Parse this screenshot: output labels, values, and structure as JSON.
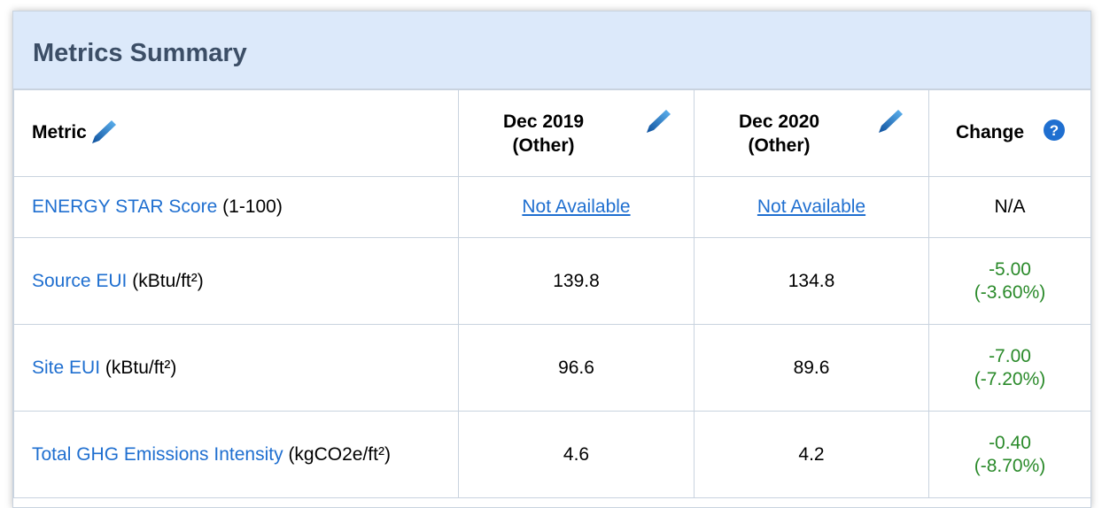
{
  "header": {
    "title": "Metrics Summary"
  },
  "table": {
    "columns": [
      {
        "lines": [
          "Metric"
        ]
      },
      {
        "lines": [
          "Dec 2019",
          "(Other)"
        ]
      },
      {
        "lines": [
          "Dec 2020",
          "(Other)"
        ]
      },
      {
        "lines": [
          "Change"
        ]
      }
    ],
    "rows": [
      {
        "metric": "ENERGY STAR Score",
        "unit": "(1-100)",
        "cells": [
          "Not Available",
          "Not Available"
        ],
        "change": [
          "N/A"
        ]
      },
      {
        "metric": "Source EUI",
        "unit": "(kBtu/ft²)",
        "cells": [
          "139.8",
          "134.8"
        ],
        "change": [
          "-5.00",
          "(-3.60%)"
        ]
      },
      {
        "metric": "Site EUI",
        "unit": "(kBtu/ft²)",
        "cells": [
          "96.6",
          "89.6"
        ],
        "change": [
          "-7.00",
          "(-7.20%)"
        ]
      },
      {
        "metric": "Total GHG Emissions Intensity",
        "unit": "(kgCO2e/ft²)",
        "cells": [
          "4.6",
          "4.2"
        ],
        "change": [
          "-0.40",
          "(-8.70%)"
        ]
      }
    ]
  }
}
